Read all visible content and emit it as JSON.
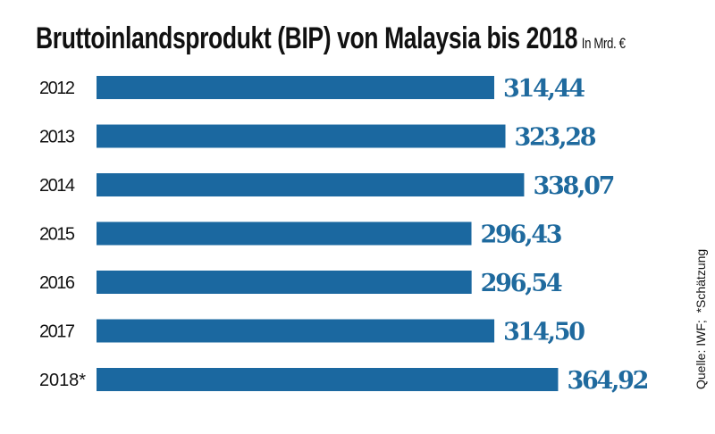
{
  "chart_data": {
    "type": "bar",
    "orientation": "horizontal",
    "title": "Bruttoinlandsprodukt (BIP) von Malaysia bis 2018",
    "unit": "In Mrd. €",
    "categories": [
      "2012",
      "2013",
      "2014",
      "2015",
      "2016",
      "2017",
      "2018*"
    ],
    "values": [
      314.44,
      323.28,
      338.07,
      296.43,
      296.54,
      314.5,
      364.92
    ],
    "value_labels": [
      "314,44",
      "323,28",
      "338,07",
      "296,43",
      "296,54",
      "314,50",
      "364,92"
    ],
    "xlim": [
      0,
      365
    ],
    "grid": false,
    "source": "Quelle: IWF;",
    "note": "*Schätzung",
    "bar_color": "#1b68a0",
    "label_color": "#1f6a9e"
  }
}
